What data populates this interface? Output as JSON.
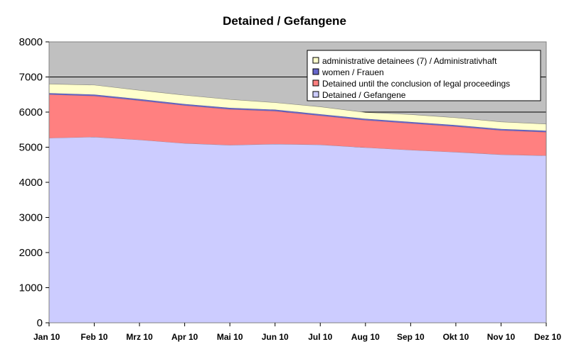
{
  "chart_data": {
    "type": "area",
    "title": "Detained / Gefangene",
    "xlabel": "",
    "ylabel": "",
    "categories": [
      "Jan 10",
      "Feb 10",
      "Mrz 10",
      "Apr 10",
      "Mai 10",
      "Jun 10",
      "Jul 10",
      "Aug 10",
      "Sep 10",
      "Okt 10",
      "Nov 10",
      "Dez 10"
    ],
    "ylim": [
      0,
      8000
    ],
    "yticks": [
      "0",
      "1000",
      "2000",
      "3000",
      "4000",
      "5000",
      "6000",
      "7000",
      "8000"
    ],
    "stacked": true,
    "grid": "horizontal",
    "plot_background": "#C0C0C0",
    "legend_position": "top-right",
    "series": [
      {
        "name": "Detained / Gefangene",
        "color": "#CCCCFF",
        "values": [
          5260,
          5290,
          5210,
          5110,
          5060,
          5090,
          5070,
          4990,
          4920,
          4860,
          4790,
          4760
        ]
      },
      {
        "name": "Detained until the conclusion of legal proceedings",
        "color": "#FF8080",
        "values": [
          1240,
          1170,
          1120,
          1080,
          1020,
          940,
          830,
          780,
          760,
          730,
          690,
          670
        ]
      },
      {
        "name": "women / Frauen",
        "color": "#6666CC",
        "values": [
          40,
          40,
          40,
          40,
          40,
          40,
          40,
          40,
          40,
          40,
          40,
          40
        ]
      },
      {
        "name": "administrative detainees (7) / Administrativhaft",
        "color": "#FFFFCC",
        "values": [
          260,
          270,
          250,
          250,
          240,
          200,
          210,
          180,
          210,
          210,
          200,
          190
        ]
      }
    ],
    "legend_order": [
      "administrative detainees (7) / Administrativhaft",
      "women / Frauen",
      "Detained until the conclusion of legal proceedings",
      "Detained / Gefangene"
    ]
  }
}
